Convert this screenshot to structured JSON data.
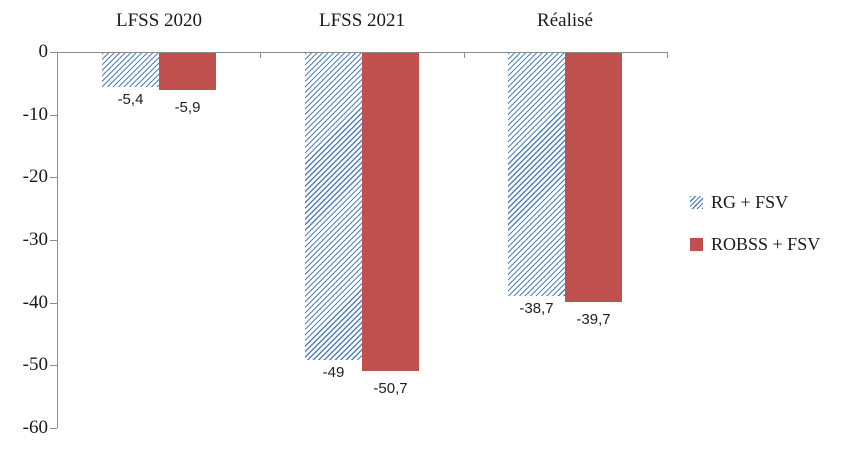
{
  "chart_data": {
    "type": "bar",
    "categories": [
      "LFSS 2020",
      "LFSS 2021",
      "Réalisé"
    ],
    "series": [
      {
        "name": "RG + FSV",
        "style": "hatched",
        "color": "#4F81BD",
        "values": [
          -5.4,
          -49,
          -38.7
        ],
        "value_labels": [
          "-5,4",
          "-49",
          "-38,7"
        ]
      },
      {
        "name": "ROBSS + FSV",
        "style": "solid",
        "color": "#C0504D",
        "values": [
          -5.9,
          -50.7,
          -39.7
        ],
        "value_labels": [
          "-5,9",
          "-50,7",
          "-39,7"
        ]
      }
    ],
    "y_ticks": [
      0,
      -10,
      -20,
      -30,
      -40,
      -50,
      -60
    ],
    "y_tick_labels": [
      "0",
      "-10",
      "-20",
      "-30",
      "-40",
      "-50",
      "-60"
    ],
    "ylim": [
      -60,
      0
    ],
    "xlabel": "",
    "ylabel": "",
    "title": "",
    "grid": false,
    "legend_position": "right",
    "axis_color": "#8c8c8c",
    "text_color": "#1a1a1a"
  }
}
